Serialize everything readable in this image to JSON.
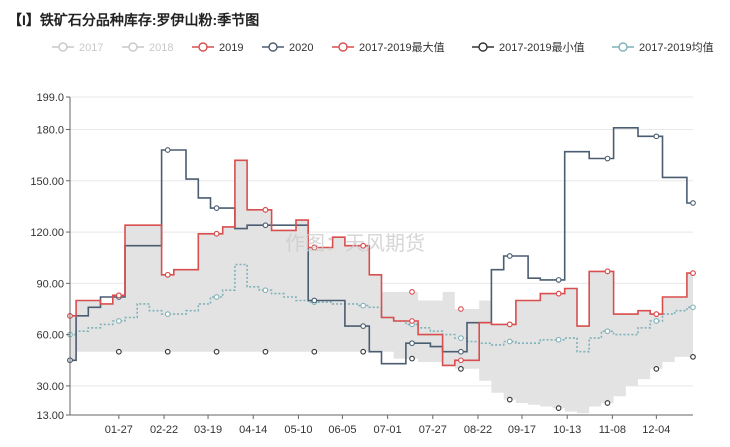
{
  "chart_data": {
    "type": "line",
    "title": "【I】铁矿石分品种库存:罗伊山粉:季节图",
    "ylim": [
      13,
      199
    ],
    "y_ticks": [
      "13.00",
      "30.00",
      "60.00",
      "90.00",
      "120.00",
      "150.00",
      "180.0",
      "199.0"
    ],
    "y_tick_values": [
      13,
      30,
      60,
      90,
      120,
      150,
      180,
      199
    ],
    "x_ticks": [
      "01-27",
      "02-22",
      "03-19",
      "04-14",
      "05-10",
      "06-05",
      "07-01",
      "07-27",
      "08-22",
      "09-17",
      "10-13",
      "11-08",
      "12-04"
    ],
    "x_domain": [
      1,
      52
    ],
    "x_tick_weeks": [
      5,
      8.7,
      12.3,
      16,
      19.7,
      23.3,
      27,
      30.7,
      34.4,
      38,
      41.7,
      45.4,
      49
    ],
    "watermark": "作图：天风期货",
    "legend": [
      "2017",
      "2018",
      "2019",
      "2020",
      "2017-2019最大值",
      "2017-2019最小值",
      "2017-2019均值"
    ],
    "colors": {
      "2019": "#d94e4e",
      "2020": "#4b5d71",
      "max": "#d94e4e",
      "min": "#333333",
      "mean": "#7fb2b9",
      "band": "#e3e3e3",
      "disabled": "#c8c8c8"
    },
    "series": [
      {
        "name": "2019",
        "values": [
          71,
          80,
          80,
          78,
          83,
          124,
          124,
          124,
          95,
          98,
          98,
          119,
          119,
          123,
          162,
          133,
          133,
          121,
          121,
          127,
          111,
          111,
          117,
          112,
          112,
          95,
          70,
          68,
          68,
          60,
          60,
          42,
          45,
          45,
          67,
          66,
          66,
          80,
          80,
          84,
          84,
          87,
          65,
          97,
          97,
          72,
          72,
          74,
          72,
          82,
          82,
          96
        ]
      },
      {
        "name": "2020",
        "values": [
          45,
          71,
          76,
          82,
          82,
          112,
          112,
          112,
          168,
          168,
          151,
          140,
          134,
          134,
          122,
          124,
          124,
          124,
          124,
          124,
          80,
          80,
          80,
          65,
          65,
          50,
          43,
          43,
          55,
          55,
          53,
          50,
          50,
          67,
          67,
          98,
          106,
          106,
          93,
          92,
          92,
          167,
          167,
          163,
          163,
          181,
          181,
          176,
          176,
          152,
          152,
          137
        ]
      },
      {
        "name": "2017-2019最大值",
        "values": [
          71,
          80,
          80,
          78,
          83,
          124,
          124,
          124,
          95,
          98,
          98,
          119,
          119,
          123,
          162,
          133,
          133,
          121,
          121,
          127,
          111,
          111,
          117,
          112,
          112,
          95,
          85,
          85,
          85,
          80,
          80,
          85,
          75,
          75,
          80,
          66,
          66,
          80,
          80,
          84,
          84,
          87,
          65,
          97,
          97,
          72,
          72,
          74,
          72,
          82,
          82,
          96
        ]
      },
      {
        "name": "2017-2019最小值",
        "values": [
          45,
          50,
          50,
          50,
          50,
          50,
          50,
          50,
          50,
          50,
          50,
          50,
          50,
          50,
          50,
          50,
          50,
          50,
          50,
          50,
          50,
          50,
          50,
          50,
          50,
          50,
          50,
          46,
          46,
          44,
          44,
          42,
          40,
          40,
          33,
          26,
          22,
          20,
          19,
          18,
          17,
          15,
          14,
          18,
          20,
          24,
          30,
          34,
          40,
          44,
          47,
          47
        ]
      },
      {
        "name": "2017-2019均值",
        "values": [
          60,
          62,
          64,
          66,
          68,
          70,
          78,
          74,
          72,
          72,
          74,
          78,
          82,
          86,
          101,
          88,
          86,
          84,
          82,
          80,
          79,
          79,
          78,
          78,
          77,
          76,
          70,
          68,
          66,
          64,
          62,
          60,
          58,
          56,
          55,
          54,
          56,
          55,
          55,
          57,
          57,
          58,
          50,
          58,
          62,
          60,
          60,
          64,
          68,
          72,
          74,
          76
        ]
      }
    ]
  }
}
